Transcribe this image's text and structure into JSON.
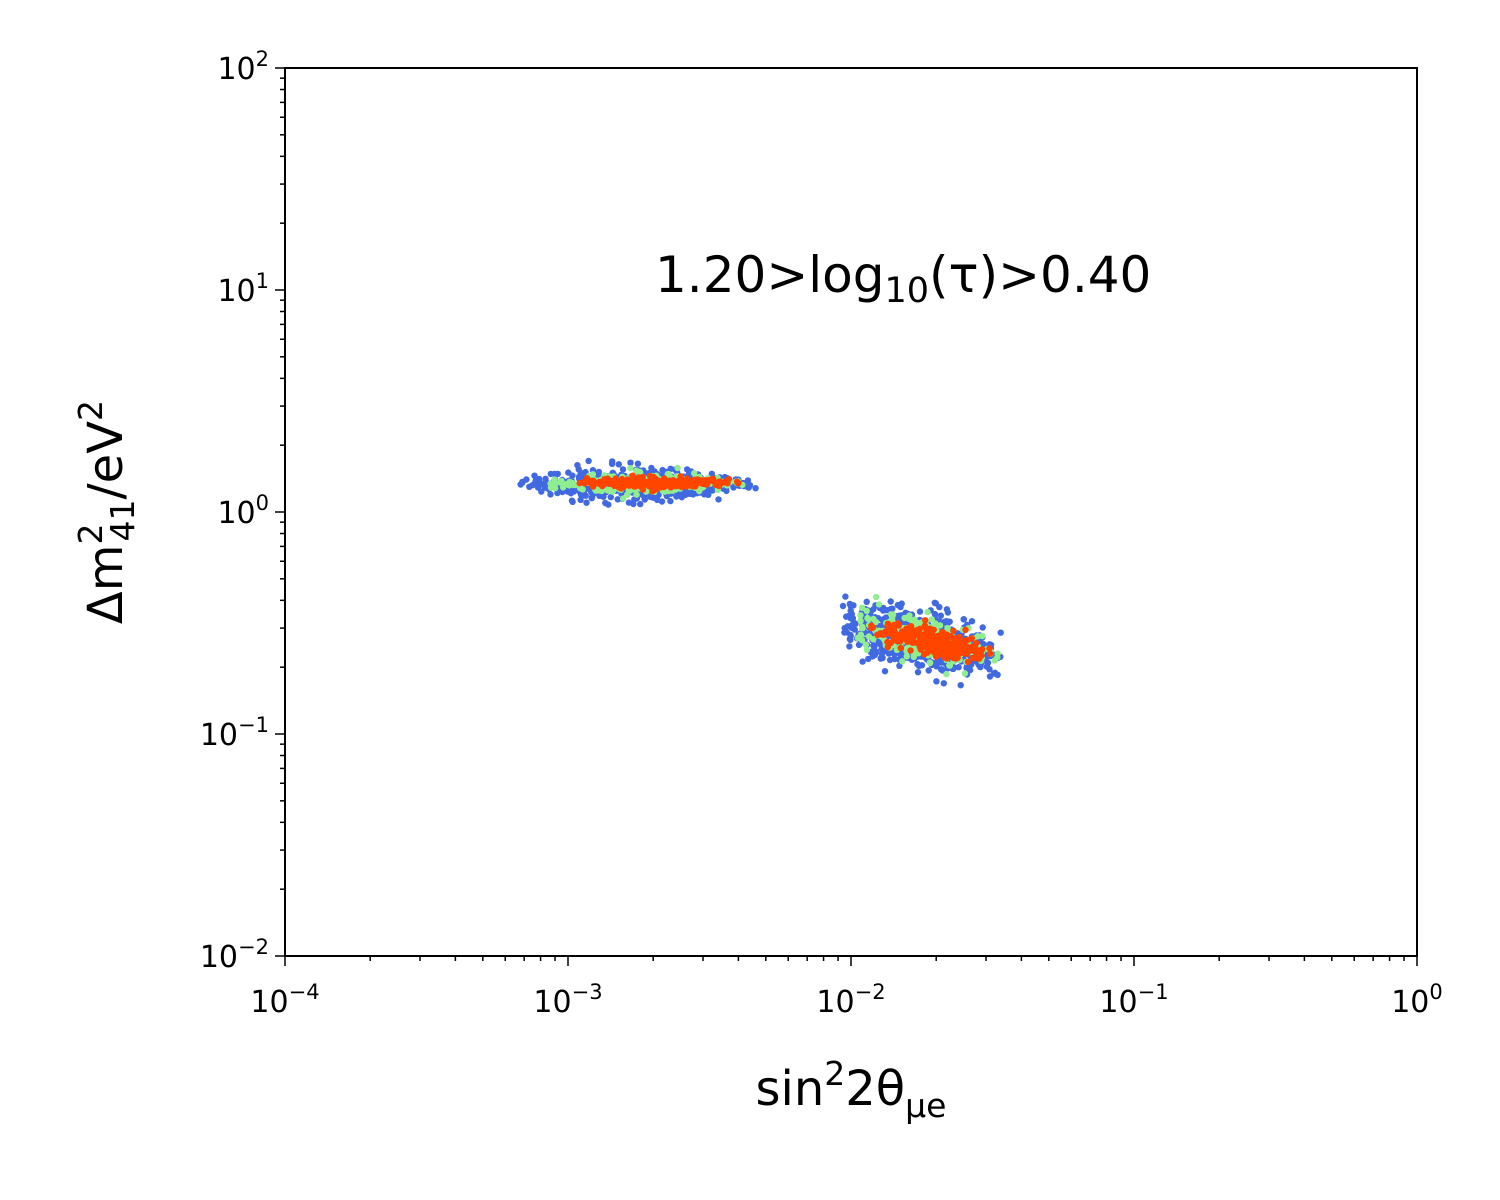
{
  "chart_data": {
    "type": "scatter",
    "title": "",
    "x_scale": "log",
    "y_scale": "log",
    "xlim": [
      0.0001,
      1
    ],
    "ylim": [
      0.01,
      100
    ],
    "grid": false,
    "x_tick_labels": [
      {
        "base": "10",
        "exp": "−4",
        "value": 0.0001
      },
      {
        "base": "10",
        "exp": "−3",
        "value": 0.001
      },
      {
        "base": "10",
        "exp": "−2",
        "value": 0.01
      },
      {
        "base": "10",
        "exp": "−1",
        "value": 0.1
      },
      {
        "base": "10",
        "exp": "0",
        "value": 1
      }
    ],
    "y_tick_labels": [
      {
        "base": "10",
        "exp": "−2",
        "value": 0.01
      },
      {
        "base": "10",
        "exp": "−1",
        "value": 0.1
      },
      {
        "base": "10",
        "exp": "0",
        "value": 1
      },
      {
        "base": "10",
        "exp": "1",
        "value": 10
      },
      {
        "base": "10",
        "exp": "2",
        "value": 100
      }
    ],
    "xlabel": {
      "prefix": "sin",
      "sup": "2",
      "mid": "2θ",
      "sub": "μe"
    },
    "ylabel": {
      "prefix": "Δm",
      "sup": "2",
      "sub": "41",
      "suffix": "/eV",
      "sup2": "2"
    },
    "annotation": {
      "prefix": "1.20>log",
      "sub": "10",
      "suffix": "(τ)>0.40"
    },
    "series": [
      {
        "color": "#4169e1",
        "point_count": 1100,
        "clusters": [
          {
            "x_range": [
              0.00068,
              0.0046
            ],
            "y_center": 1.33,
            "y_spread": 0.08
          },
          {
            "x_range": [
              0.0093,
              0.034
            ],
            "y_at_x_min": 0.32,
            "y_at_x_max": 0.22,
            "y_spread": 0.14
          }
        ],
        "points": [
          [
            0.00068,
            1.33
          ],
          [
            0.00075,
            1.32
          ],
          [
            0.0008,
            1.35
          ],
          [
            0.00085,
            1.31
          ],
          [
            0.0009,
            1.36
          ],
          [
            0.001,
            1.3
          ],
          [
            0.0012,
            1.38
          ],
          [
            0.0015,
            1.29
          ],
          [
            0.0018,
            1.4
          ],
          [
            0.002,
            1.28
          ],
          [
            0.0022,
            1.45
          ],
          [
            0.0025,
            1.27
          ],
          [
            0.0027,
            1.48
          ],
          [
            0.003,
            1.3
          ],
          [
            0.0033,
            1.42
          ],
          [
            0.0036,
            1.27
          ],
          [
            0.004,
            1.4
          ],
          [
            0.0043,
            1.3
          ],
          [
            0.0046,
            1.28
          ],
          [
            0.0095,
            0.3
          ],
          [
            0.0098,
            0.34
          ],
          [
            0.0102,
            0.38
          ],
          [
            0.0105,
            0.27
          ],
          [
            0.011,
            0.32
          ],
          [
            0.0115,
            0.36
          ],
          [
            0.012,
            0.25
          ],
          [
            0.013,
            0.37
          ],
          [
            0.014,
            0.24
          ],
          [
            0.015,
            0.33
          ],
          [
            0.016,
            0.22
          ],
          [
            0.018,
            0.3
          ],
          [
            0.02,
            0.21
          ],
          [
            0.022,
            0.28
          ],
          [
            0.024,
            0.2
          ],
          [
            0.026,
            0.25
          ],
          [
            0.028,
            0.21
          ],
          [
            0.03,
            0.24
          ],
          [
            0.033,
            0.22
          ]
        ]
      },
      {
        "color": "#90ee90",
        "point_count": 500,
        "clusters": [
          {
            "x_range": [
              0.00085,
              0.0042
            ],
            "y_center": 1.34,
            "y_spread": 0.05
          },
          {
            "x_range": [
              0.0105,
              0.033
            ],
            "y_at_x_min": 0.31,
            "y_at_x_max": 0.23,
            "y_spread": 0.1
          }
        ],
        "points": [
          [
            0.0009,
            1.34
          ],
          [
            0.0012,
            1.36
          ],
          [
            0.0015,
            1.33
          ],
          [
            0.0018,
            1.38
          ],
          [
            0.0022,
            1.35
          ],
          [
            0.0026,
            1.4
          ],
          [
            0.003,
            1.34
          ],
          [
            0.0035,
            1.37
          ],
          [
            0.004,
            1.35
          ],
          [
            0.011,
            0.3
          ],
          [
            0.012,
            0.33
          ],
          [
            0.013,
            0.27
          ],
          [
            0.015,
            0.3
          ],
          [
            0.017,
            0.26
          ],
          [
            0.019,
            0.21
          ],
          [
            0.022,
            0.27
          ],
          [
            0.025,
            0.24
          ],
          [
            0.029,
            0.22
          ],
          [
            0.033,
            0.23
          ]
        ]
      },
      {
        "color": "#ff4500",
        "point_count": 500,
        "clusters": [
          {
            "x_range": [
              0.00105,
              0.004
            ],
            "y_center": 1.35,
            "y_spread": 0.03
          },
          {
            "x_range": [
              0.0115,
              0.031
            ],
            "y_at_x_min": 0.3,
            "y_at_x_max": 0.23,
            "y_spread": 0.07
          }
        ],
        "points": [
          [
            0.0011,
            1.35
          ],
          [
            0.0014,
            1.34
          ],
          [
            0.0018,
            1.36
          ],
          [
            0.0022,
            1.35
          ],
          [
            0.0026,
            1.37
          ],
          [
            0.003,
            1.34
          ],
          [
            0.0035,
            1.36
          ],
          [
            0.004,
            1.35
          ],
          [
            0.0118,
            0.3
          ],
          [
            0.013,
            0.28
          ],
          [
            0.015,
            0.27
          ],
          [
            0.017,
            0.29
          ],
          [
            0.019,
            0.26
          ],
          [
            0.02,
            0.24
          ],
          [
            0.023,
            0.22
          ],
          [
            0.025,
            0.24
          ],
          [
            0.027,
            0.22
          ],
          [
            0.031,
            0.23
          ]
        ]
      }
    ]
  }
}
